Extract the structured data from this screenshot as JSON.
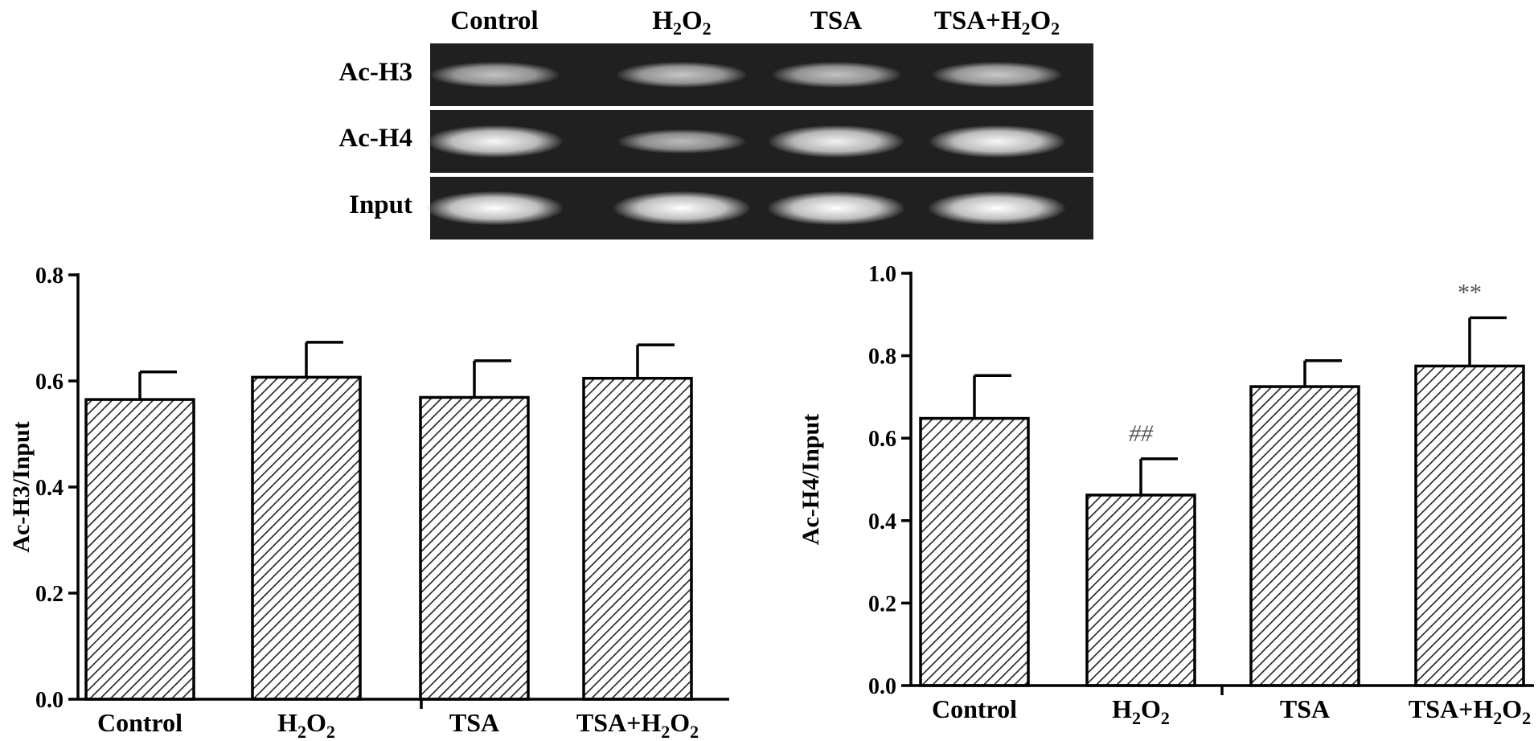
{
  "blot": {
    "lanes": [
      "Control",
      "H2O2",
      "TSA",
      "TSA+H2O2"
    ],
    "rows": [
      {
        "label": "Ac-H3",
        "intensity": [
          0.55,
          0.58,
          0.55,
          0.6
        ]
      },
      {
        "label": "Ac-H4",
        "intensity": [
          0.95,
          0.5,
          0.9,
          0.95
        ]
      },
      {
        "label": "Input",
        "intensity": [
          1.0,
          1.0,
          1.0,
          1.0
        ]
      }
    ]
  },
  "chart_data": [
    {
      "type": "bar",
      "categories": [
        "Control",
        "H2O2",
        "TSA",
        "TSA+H2O2"
      ],
      "values": [
        0.565,
        0.607,
        0.569,
        0.605
      ],
      "errors": [
        0.052,
        0.066,
        0.069,
        0.063
      ],
      "annotations": [
        "",
        "",
        "",
        ""
      ],
      "ylabel": "Ac-H3/Input",
      "ylim": [
        0,
        0.8
      ],
      "yticks": [
        "0.0",
        "0.2",
        "0.4",
        "0.6",
        "0.8"
      ],
      "bar_fill": "hatched",
      "annotation_color": "#555555"
    },
    {
      "type": "bar",
      "categories": [
        "Control",
        "H2O2",
        "TSA",
        "TSA+H2O2"
      ],
      "values": [
        0.648,
        0.462,
        0.725,
        0.775
      ],
      "errors": [
        0.104,
        0.088,
        0.063,
        0.117
      ],
      "annotations": [
        "",
        "##",
        "",
        "**"
      ],
      "ylabel": "Ac-H4/Input",
      "ylim": [
        0,
        1.0
      ],
      "yticks": [
        "0.0",
        "0.2",
        "0.4",
        "0.6",
        "0.8",
        "1.0"
      ],
      "bar_fill": "hatched",
      "annotation_color": "#555555"
    }
  ]
}
